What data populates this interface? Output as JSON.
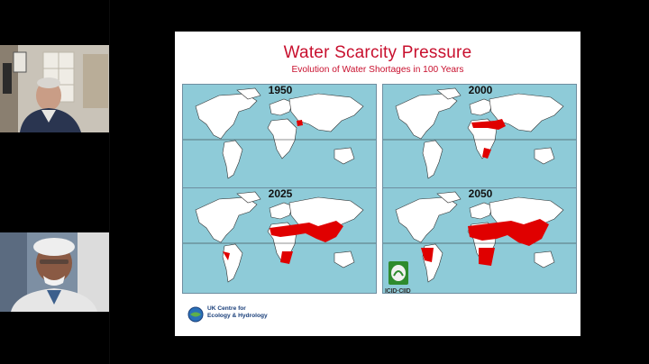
{
  "participants": [
    {
      "id": "participant-1"
    },
    {
      "id": "participant-2"
    }
  ],
  "slide": {
    "title": "Water Scarcity Pressure",
    "subtitle": "Evolution of Water Shortages in 100 Years",
    "maps": [
      {
        "year": "1950"
      },
      {
        "year": "2000"
      },
      {
        "year": "2025"
      },
      {
        "year": "2050"
      }
    ],
    "logo_left_text": "UK Centre for\nEcology & Hydrology",
    "logo_right_text": "ICID·CIID"
  },
  "colors": {
    "title": "#c8102e",
    "ocean": "#8ecbd8",
    "land": "#ffffff",
    "scarcity": "#e00000",
    "icid_green": "#2e8b2e",
    "ukceh_blue": "#1a3f7a"
  }
}
